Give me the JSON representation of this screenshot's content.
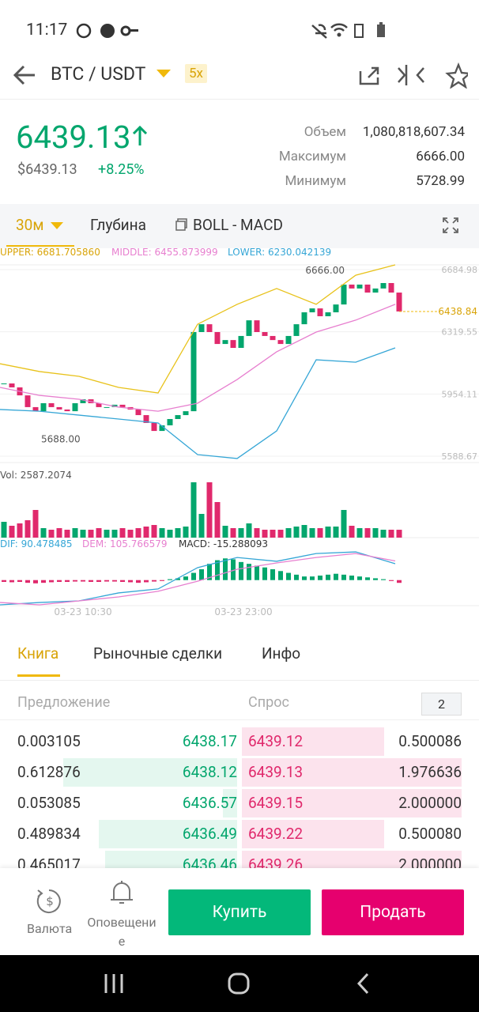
{
  "status": {
    "time": "11:17"
  },
  "header": {
    "pair": "BTC / USDT",
    "leverage": "5x"
  },
  "ticker": {
    "price": "6439.13",
    "price_usd": "$6439.13",
    "change": "+8.25%",
    "stats": [
      {
        "label": "Объем",
        "value": "1,080,818,607.34"
      },
      {
        "label": "Максимум",
        "value": "6666.00"
      },
      {
        "label": "Минимум",
        "value": "5728.99"
      }
    ]
  },
  "chart_tabs": {
    "interval": "30м",
    "depth": "Глубина",
    "indicators": "BOLL - MACD"
  },
  "chart_data": {
    "type": "candlestick",
    "legend": {
      "upper": "UPPER: 6681.705860",
      "middle": "MIDDLE: 6455.873999",
      "lower": "LOWER: 6230.042139"
    },
    "ylim": [
      5588.67,
      6684.98
    ],
    "yticks": [
      {
        "value": 6684.98,
        "label": "6684.98"
      },
      {
        "value": 6319.55,
        "label": "6319.55"
      },
      {
        "value": 5954.11,
        "label": "5954.11"
      },
      {
        "value": 5588.67,
        "label": "5588.67"
      }
    ],
    "last_price": {
      "value": 6438.84,
      "label": "6438.84"
    },
    "annotations": [
      {
        "value": 6666,
        "label": "6666.00"
      },
      {
        "value": 5688,
        "label": "5688.00"
      }
    ],
    "close": [
      6016,
      5993,
      5946,
      5877,
      5853,
      5900,
      5877,
      5863,
      5853,
      5900,
      5923,
      5900,
      5877,
      5877,
      5891,
      5877,
      5863,
      5830,
      5784,
      5737,
      5770,
      5807,
      5830,
      5853,
      6318,
      6364,
      6318,
      6248,
      6271,
      6225,
      6295,
      6387,
      6318,
      6295,
      6271,
      6248,
      6295,
      6364,
      6434,
      6457,
      6411,
      6434,
      6480,
      6597,
      6574,
      6597,
      6550,
      6574,
      6606,
      6550,
      6439
    ],
    "bands": [
      {
        "name": "upper",
        "color": "#e8c21a",
        "values": [
          6132,
          6086,
          6058,
          5993,
          5960,
          6364,
          6481,
          6574,
          6481,
          6652,
          6713
        ]
      },
      {
        "name": "middle",
        "color": "#e77fcf",
        "values": [
          5993,
          5946,
          5923,
          5877,
          5853,
          5900,
          6039,
          6202,
          6318,
          6388,
          6481
        ]
      },
      {
        "name": "lower",
        "color": "#35a6d6",
        "values": [
          5863,
          5853,
          5830,
          5807,
          5784,
          5598,
          5575,
          5737,
          6155,
          6141,
          6225
        ]
      }
    ],
    "volume": {
      "label": "Vol: 2587.2074",
      "ylim": [
        0,
        18720
      ],
      "values": [
        5200,
        3900,
        4680,
        5720,
        9100,
        3120,
        2600,
        3120,
        2600,
        3120,
        2600,
        2600,
        3120,
        2600,
        2600,
        3120,
        2600,
        3120,
        3640,
        4160,
        3120,
        2600,
        3120,
        3640,
        18200,
        7800,
        18200,
        11700,
        3900,
        3120,
        3120,
        4680,
        3120,
        2600,
        2600,
        2600,
        3120,
        3640,
        4160,
        3120,
        3120,
        3640,
        3640,
        9100,
        3900,
        3120,
        3120,
        3120,
        2600,
        2600,
        2587.2074
      ]
    },
    "macd": {
      "ylim": [
        -150,
        200
      ],
      "labels": {
        "dif": "DIF: 90.478485",
        "dem": "DEM: 105.766579",
        "macd": "MACD: -15.288093"
      },
      "dif": [
        -137,
        -124,
        -115,
        -71,
        -49,
        69,
        125,
        104,
        147,
        156,
        90.478485
      ],
      "dem": [
        -124,
        -137,
        -115,
        -93,
        -62,
        -6,
        60,
        95,
        125,
        147,
        105.766579
      ],
      "hist": [
        -10,
        -12,
        -10,
        -15,
        -18,
        -15,
        -12,
        -10,
        -10,
        -8,
        -8,
        -10,
        -10,
        -8,
        -8,
        -10,
        -12,
        -15,
        -12,
        -8,
        -5,
        5,
        10,
        20,
        40,
        60,
        90,
        110,
        120,
        115,
        100,
        90,
        80,
        70,
        60,
        50,
        40,
        30,
        20,
        20,
        25,
        30,
        35,
        30,
        25,
        20,
        15,
        10,
        5,
        -5,
        -15.288093
      ]
    },
    "time_labels": [
      "03-23 10:30",
      "03-23 23:00"
    ]
  },
  "book_tabs": [
    "Книга",
    "Рыночные сделки",
    "Инфо"
  ],
  "book": {
    "bid_header": "Предложение",
    "ask_header": "Спрос",
    "precision": "2",
    "rows": [
      [
        "0.003105",
        "6438.17",
        "6439.12",
        "0.500086"
      ],
      [
        "0.612876",
        "6438.12",
        "6439.13",
        "1.976636"
      ],
      [
        "0.053085",
        "6436.57",
        "6439.15",
        "2.000000"
      ],
      [
        "0.489834",
        "6436.49",
        "6439.22",
        "0.500080"
      ],
      [
        "0.465017",
        "6436.46",
        "6439.26",
        "2.000000"
      ]
    ]
  },
  "bottom": {
    "currency": "Валюта",
    "alerts": "Оповещение",
    "buy": "Купить",
    "sell": "Продать"
  }
}
